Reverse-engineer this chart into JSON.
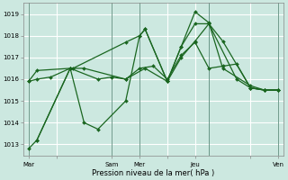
{
  "background_color": "#cce8e0",
  "grid_color": "#ffffff",
  "line_color": "#1a6620",
  "xlabel": "Pression niveau de la mer( hPa )",
  "ylim": [
    1012.5,
    1019.5
  ],
  "yticks": [
    1013,
    1014,
    1015,
    1016,
    1017,
    1018,
    1019
  ],
  "xtick_labels": [
    "Mar",
    "",
    "Sam",
    "Mer",
    "",
    "Jeu",
    "",
    "Ven"
  ],
  "xtick_positions": [
    0,
    1,
    3,
    4,
    5,
    6,
    8,
    9
  ],
  "lines": [
    {
      "x": [
        0.0,
        0.3,
        1.5,
        1.6,
        3.5,
        4.0,
        4.2,
        5.0,
        5.5,
        6.0,
        6.5,
        7.0,
        8.0,
        8.5,
        9.0
      ],
      "y": [
        1012.8,
        1013.2,
        1016.5,
        1016.5,
        1017.7,
        1018.0,
        1018.3,
        1015.9,
        1017.5,
        1018.55,
        1018.55,
        1017.75,
        1015.6,
        1015.5,
        1015.5
      ]
    },
    {
      "x": [
        0.3,
        1.5,
        2.0,
        2.5,
        3.5,
        4.0,
        4.2,
        5.0,
        5.5,
        6.0,
        6.5,
        7.0,
        8.0,
        8.5,
        9.0
      ],
      "y": [
        1013.2,
        1016.5,
        1014.0,
        1013.7,
        1015.0,
        1018.0,
        1018.3,
        1015.9,
        1017.5,
        1019.1,
        1018.6,
        1016.5,
        1015.7,
        1015.5,
        1015.5
      ]
    },
    {
      "x": [
        0.0,
        0.3,
        1.5,
        2.0,
        3.5,
        4.2,
        5.0,
        5.5,
        6.0,
        6.5,
        7.5,
        8.0,
        8.5,
        9.0
      ],
      "y": [
        1015.9,
        1016.4,
        1016.5,
        1016.5,
        1016.0,
        1016.5,
        1015.9,
        1017.0,
        1017.75,
        1018.55,
        1016.0,
        1015.6,
        1015.5,
        1015.5
      ]
    },
    {
      "x": [
        0.0,
        0.3,
        0.8,
        1.5,
        2.5,
        3.0,
        3.5,
        4.0,
        4.5,
        5.0,
        5.5,
        6.0,
        6.5,
        7.0,
        7.5,
        8.0,
        8.5,
        9.0
      ],
      "y": [
        1015.9,
        1016.0,
        1016.1,
        1016.5,
        1016.0,
        1016.1,
        1016.0,
        1016.5,
        1016.6,
        1016.0,
        1017.1,
        1017.7,
        1016.5,
        1016.6,
        1016.7,
        1015.6,
        1015.5,
        1015.5
      ]
    }
  ],
  "vline_positions": [
    0.0,
    3.0,
    4.0,
    6.5,
    9.0
  ],
  "marker": "D",
  "markersize": 2.0
}
